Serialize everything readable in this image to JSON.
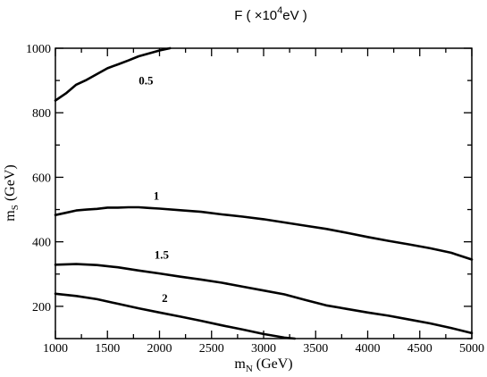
{
  "chart_data": {
    "type": "line",
    "title": {
      "prefix": "F ( ×10",
      "exp": "4",
      "suffix": "eV )"
    },
    "xlabel": {
      "main": "m",
      "sub": "N",
      "unit": " (GeV)"
    },
    "ylabel": {
      "main": "m",
      "sub": "S",
      "unit": " (GeV)"
    },
    "xlim": [
      1000,
      5000
    ],
    "ylim": [
      100,
      1000
    ],
    "xticks": [
      1000,
      1500,
      2000,
      2500,
      3000,
      3500,
      4000,
      4500,
      5000
    ],
    "yticks": [
      200,
      400,
      600,
      800,
      1000
    ],
    "grid": false,
    "series": [
      {
        "name": "0.5",
        "label_at": [
          1870,
          888
        ],
        "x": [
          1000,
          1100,
          1200,
          1300,
          1400,
          1500,
          1600,
          1700,
          1800,
          1900,
          2000,
          2100
        ],
        "y": [
          838,
          860,
          887,
          902,
          920,
          938,
          950,
          962,
          975,
          984,
          993,
          1000
        ]
      },
      {
        "name": "1",
        "label_at": [
          1970,
          530
        ],
        "x": [
          1000,
          1100,
          1200,
          1300,
          1400,
          1500,
          1600,
          1700,
          1800,
          1900,
          2000,
          2200,
          2400,
          2600,
          2800,
          3000,
          3200,
          3400,
          3600,
          3800,
          4000,
          4200,
          4400,
          4600,
          4800,
          5000
        ],
        "y": [
          483,
          490,
          497,
          500,
          502,
          506,
          506,
          507,
          507,
          505,
          503,
          498,
          493,
          485,
          478,
          470,
          460,
          450,
          440,
          428,
          415,
          403,
          392,
          380,
          366,
          345
        ]
      },
      {
        "name": "1.5",
        "label_at": [
          2020,
          348
        ],
        "x": [
          1000,
          1200,
          1400,
          1600,
          1800,
          2000,
          2200,
          2400,
          2600,
          2800,
          3000,
          3200,
          3400,
          3600,
          3800,
          4000,
          4200,
          4400,
          4600,
          4800,
          5000
        ],
        "y": [
          329,
          331,
          328,
          321,
          311,
          302,
          292,
          283,
          273,
          261,
          249,
          237,
          220,
          203,
          192,
          181,
          171,
          159,
          147,
          133,
          117
        ]
      },
      {
        "name": "2",
        "label_at": [
          2050,
          213
        ],
        "x": [
          1000,
          1200,
          1400,
          1600,
          1800,
          2000,
          2200,
          2400,
          2600,
          2800,
          3000,
          3200,
          3300
        ],
        "y": [
          239,
          232,
          222,
          208,
          194,
          181,
          168,
          155,
          141,
          128,
          114,
          103,
          100
        ]
      }
    ]
  }
}
